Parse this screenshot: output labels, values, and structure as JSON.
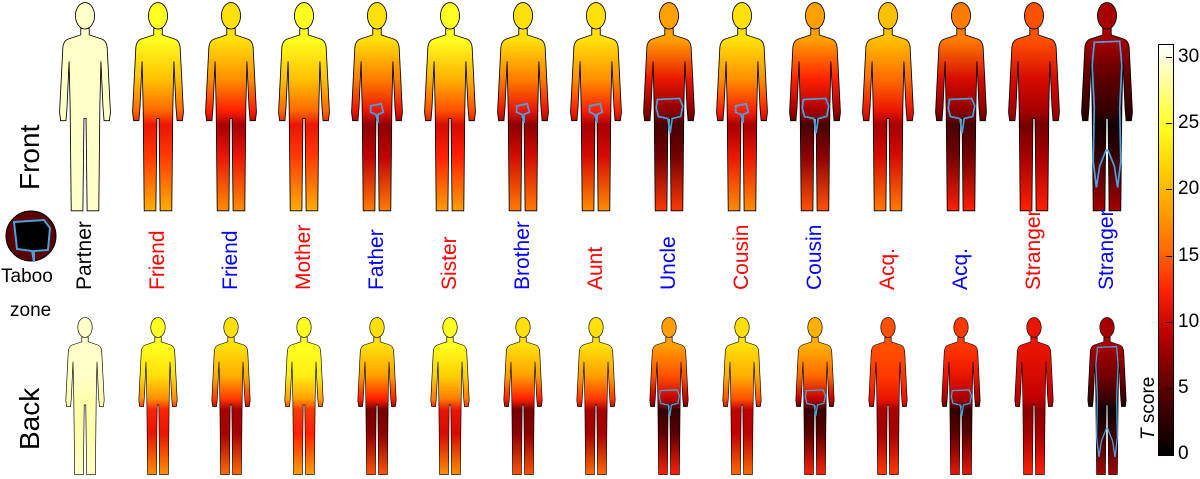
{
  "chart_data": {
    "type": "heatmap",
    "row_labels": [
      "Front",
      "Back"
    ],
    "legend": {
      "taboo_label_line1": "Taboo",
      "taboo_label_line2": "zone"
    },
    "colorbar": {
      "label_italic": "T",
      "label_rest": " score",
      "range": [
        0,
        31
      ],
      "ticks": [
        "0",
        "5",
        "10",
        "15",
        "20",
        "25",
        "30"
      ],
      "colormap": "hot"
    },
    "colors": {
      "red_label": "#ff0000",
      "blue_label": "#0000ff",
      "black_label": "#000000",
      "taboo_outline": "#4aa3df"
    },
    "body_regions": [
      "head",
      "chest",
      "belly",
      "crotch",
      "legs",
      "feet"
    ],
    "columns": [
      {
        "label": "Partner",
        "color": "black",
        "front": [
          29,
          29,
          29,
          29,
          29,
          29
        ],
        "back": [
          29,
          29,
          28,
          28,
          28,
          29
        ],
        "taboo_front": 0,
        "taboo_back": 0
      },
      {
        "label": "Friend",
        "color": "red",
        "front": [
          24,
          20,
          15,
          11,
          13,
          19
        ],
        "back": [
          24,
          22,
          17,
          12,
          11,
          17
        ],
        "taboo_front": 0,
        "taboo_back": 0
      },
      {
        "label": "Friend",
        "color": "blue",
        "front": [
          22,
          17,
          12,
          8,
          11,
          17
        ],
        "back": [
          22,
          19,
          13,
          8,
          8,
          15
        ],
        "taboo_front": 0,
        "taboo_back": 0
      },
      {
        "label": "Mother",
        "color": "red",
        "front": [
          24,
          20,
          15,
          11,
          13,
          19
        ],
        "back": [
          24,
          23,
          18,
          13,
          12,
          18
        ],
        "taboo_front": 0,
        "taboo_back": 0
      },
      {
        "label": "Father",
        "color": "blue",
        "front": [
          22,
          16,
          11,
          7,
          9,
          16
        ],
        "back": [
          22,
          18,
          12,
          6,
          7,
          14
        ],
        "taboo_front": 1,
        "taboo_back": 0
      },
      {
        "label": "Sister",
        "color": "red",
        "front": [
          24,
          19,
          14,
          10,
          12,
          18
        ],
        "back": [
          24,
          21,
          16,
          11,
          10,
          17
        ],
        "taboo_front": 0,
        "taboo_back": 0
      },
      {
        "label": "Brother",
        "color": "blue",
        "front": [
          22,
          16,
          11,
          7,
          10,
          16
        ],
        "back": [
          22,
          18,
          12,
          6,
          7,
          14
        ],
        "taboo_front": 1,
        "taboo_back": 0
      },
      {
        "label": "Aunt",
        "color": "red",
        "front": [
          22,
          17,
          12,
          8,
          10,
          17
        ],
        "back": [
          22,
          18,
          13,
          8,
          8,
          15
        ],
        "taboo_front": 1,
        "taboo_back": 0
      },
      {
        "label": "Uncle",
        "color": "blue",
        "front": [
          18,
          11,
          7,
          4,
          6,
          13
        ],
        "back": [
          18,
          14,
          9,
          3,
          5,
          12
        ],
        "taboo_front": 2,
        "taboo_back": 2
      },
      {
        "label": "Cousin",
        "color": "red",
        "front": [
          22,
          17,
          12,
          8,
          11,
          17
        ],
        "back": [
          22,
          19,
          14,
          9,
          9,
          15
        ],
        "taboo_front": 1,
        "taboo_back": 0
      },
      {
        "label": "Cousin",
        "color": "blue",
        "front": [
          18,
          12,
          8,
          4,
          7,
          14
        ],
        "back": [
          19,
          15,
          9,
          3,
          5,
          12
        ],
        "taboo_front": 2,
        "taboo_back": 2
      },
      {
        "label": "Acq.",
        "color": "red",
        "front": [
          20,
          15,
          11,
          8,
          10,
          16
        ],
        "back": [
          14,
          13,
          11,
          8,
          8,
          13
        ],
        "taboo_front": 0,
        "taboo_back": 0
      },
      {
        "label": "Acq.",
        "color": "blue",
        "front": [
          16,
          10,
          7,
          4,
          6,
          12
        ],
        "back": [
          13,
          11,
          8,
          3,
          5,
          11
        ],
        "taboo_front": 2,
        "taboo_back": 2
      },
      {
        "label": "Stranger",
        "color": "red",
        "front": [
          14,
          10,
          8,
          6,
          8,
          12
        ],
        "back": [
          11,
          10,
          9,
          7,
          8,
          12
        ],
        "taboo_front": 0,
        "taboo_back": 0
      },
      {
        "label": "Stranger",
        "color": "blue",
        "front": [
          8,
          5,
          3,
          1,
          3,
          8
        ],
        "back": [
          8,
          6,
          3,
          1,
          3,
          8
        ],
        "taboo_front": 3,
        "taboo_back": 3
      }
    ]
  }
}
